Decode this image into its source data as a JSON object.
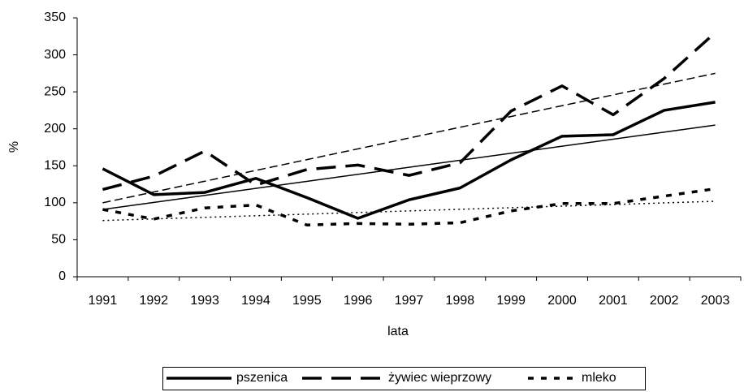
{
  "chart_data": {
    "type": "line",
    "x_label": "lata",
    "y_label": "%",
    "categories": [
      "1991",
      "1992",
      "1993",
      "1994",
      "1995",
      "1996",
      "1997",
      "1998",
      "1999",
      "2000",
      "2001",
      "2002",
      "2003"
    ],
    "series": [
      {
        "name": "pszenica",
        "color": "#000000",
        "style": "solid",
        "values": [
          146,
          111,
          114,
          133,
          107,
          79,
          104,
          120,
          158,
          190,
          192,
          225,
          236
        ],
        "trend": [
          91,
          205
        ]
      },
      {
        "name": "żywiec wieprzowy",
        "color": "#000000",
        "style": "dashed",
        "values": [
          118,
          136,
          170,
          124,
          145,
          151,
          137,
          154,
          224,
          258,
          219,
          268,
          330
        ],
        "trend": [
          100,
          275
        ]
      },
      {
        "name": "mleko",
        "color": "#000000",
        "style": "dotted",
        "values": [
          91,
          78,
          93,
          97,
          70,
          72,
          71,
          73,
          89,
          99,
          99,
          109,
          119
        ],
        "trend": [
          76,
          102
        ]
      }
    ],
    "ylim": [
      0,
      350
    ],
    "yticks": [
      0,
      50,
      100,
      150,
      200,
      250,
      300,
      350
    ],
    "grid": false
  }
}
